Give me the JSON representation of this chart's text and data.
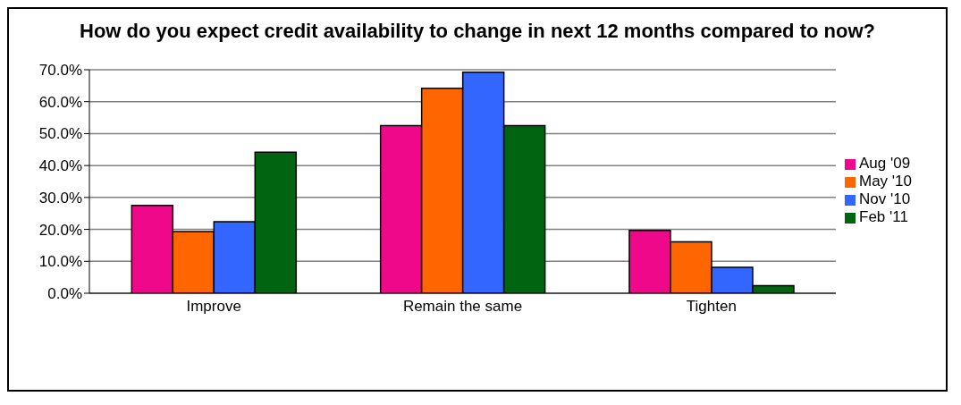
{
  "chart_data": {
    "type": "bar",
    "title": "How do you expect credit availability to change in next 12 months compared to now?",
    "categories": [
      "Improve",
      "Remain the same",
      "Tighten"
    ],
    "series": [
      {
        "name": "Aug '09",
        "color": "#f0088a",
        "values": [
          27.5,
          52.5,
          19.7
        ]
      },
      {
        "name": "May '10",
        "color": "#ff6600",
        "values": [
          19.3,
          64.2,
          16.1
        ]
      },
      {
        "name": "Nov '10",
        "color": "#3366ff",
        "values": [
          22.4,
          69.2,
          8.1
        ]
      },
      {
        "name": "Feb '11",
        "color": "#006411",
        "values": [
          44.2,
          52.5,
          2.4
        ]
      }
    ],
    "ylim": [
      0,
      70
    ],
    "yticks": [
      {
        "value": 0,
        "label": "0.0%"
      },
      {
        "value": 10,
        "label": "10.0%"
      },
      {
        "value": 20,
        "label": "20.0%"
      },
      {
        "value": 30,
        "label": "30.0%"
      },
      {
        "value": 40,
        "label": "40.0%"
      },
      {
        "value": 50,
        "label": "50.0%"
      },
      {
        "value": 60,
        "label": "60.0%"
      },
      {
        "value": 70,
        "label": "70.0%"
      }
    ],
    "grid": "y",
    "legend": "right"
  }
}
